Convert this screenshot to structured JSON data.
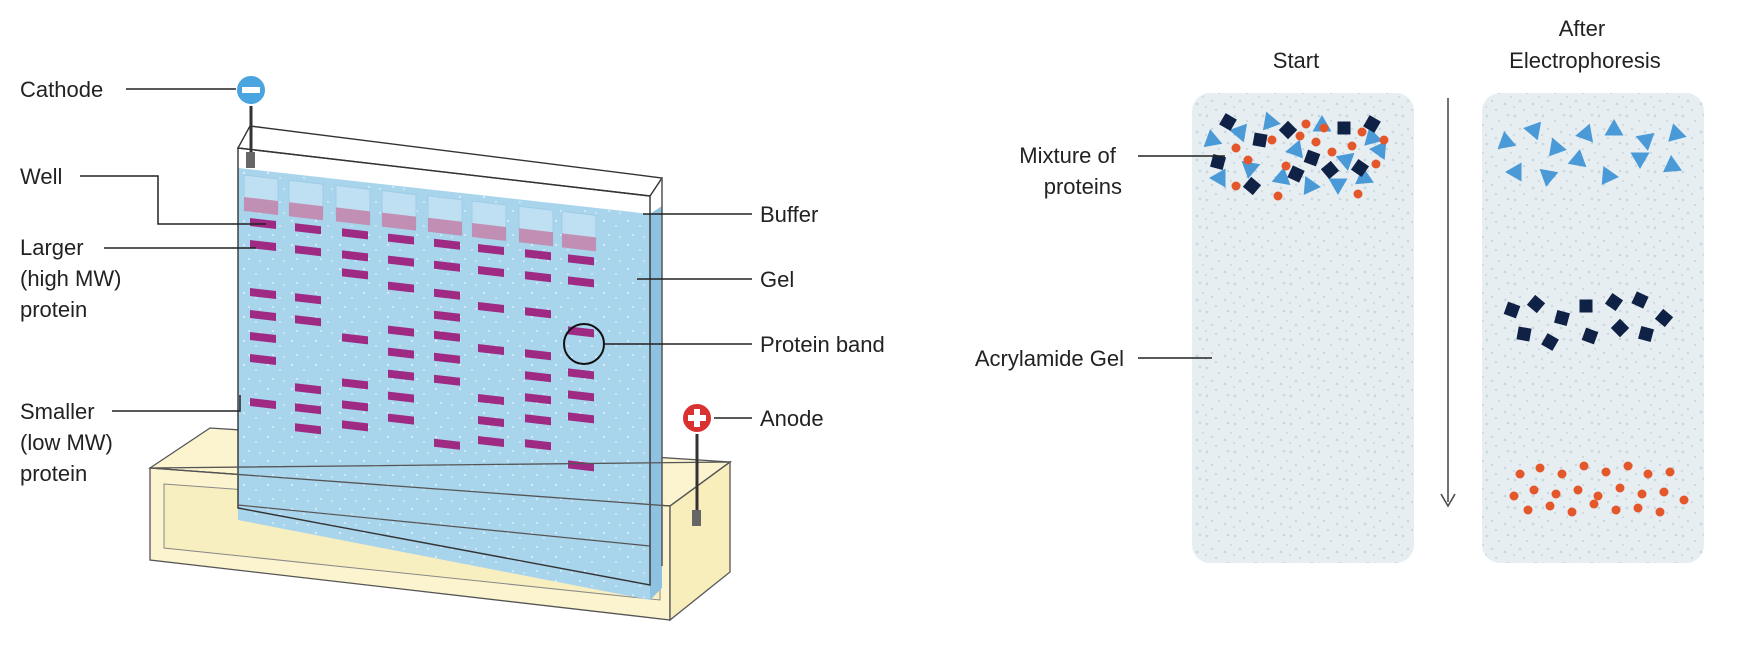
{
  "colors": {
    "gel": "#a8d4ec",
    "gel_dark": "#8ec2e0",
    "band": "#9e2a83",
    "well_fill": "#c28fb4",
    "buffer_tank": "#fbf4cf",
    "panel": "#e7eef2",
    "panel_dot": "#c9d7de",
    "triangle": "#4a9ad8",
    "square": "#0f2145",
    "dot": "#e3572b",
    "cathode": "#4aa4e0",
    "anode": "#d93030"
  },
  "icons": {
    "cathode": "minus-circle-icon",
    "anode": "plus-circle-icon",
    "direction": "arrow-down-icon"
  },
  "apparatus": {
    "labels": {
      "cathode": "Cathode",
      "well": "Well",
      "larger": [
        "Larger",
        "(high MW)",
        "protein"
      ],
      "smaller": [
        "Smaller",
        "(low MW)",
        "protein"
      ],
      "buffer": "Buffer",
      "gel": "Gel",
      "protein_band": "Protein band",
      "anode": "Anode"
    }
  },
  "separation": {
    "start_title": "Start",
    "after_title": [
      "After",
      "Electrophoresis"
    ],
    "mixture_label": [
      "Mixture of",
      "proteins"
    ],
    "gel_label": "Acrylamide Gel"
  }
}
